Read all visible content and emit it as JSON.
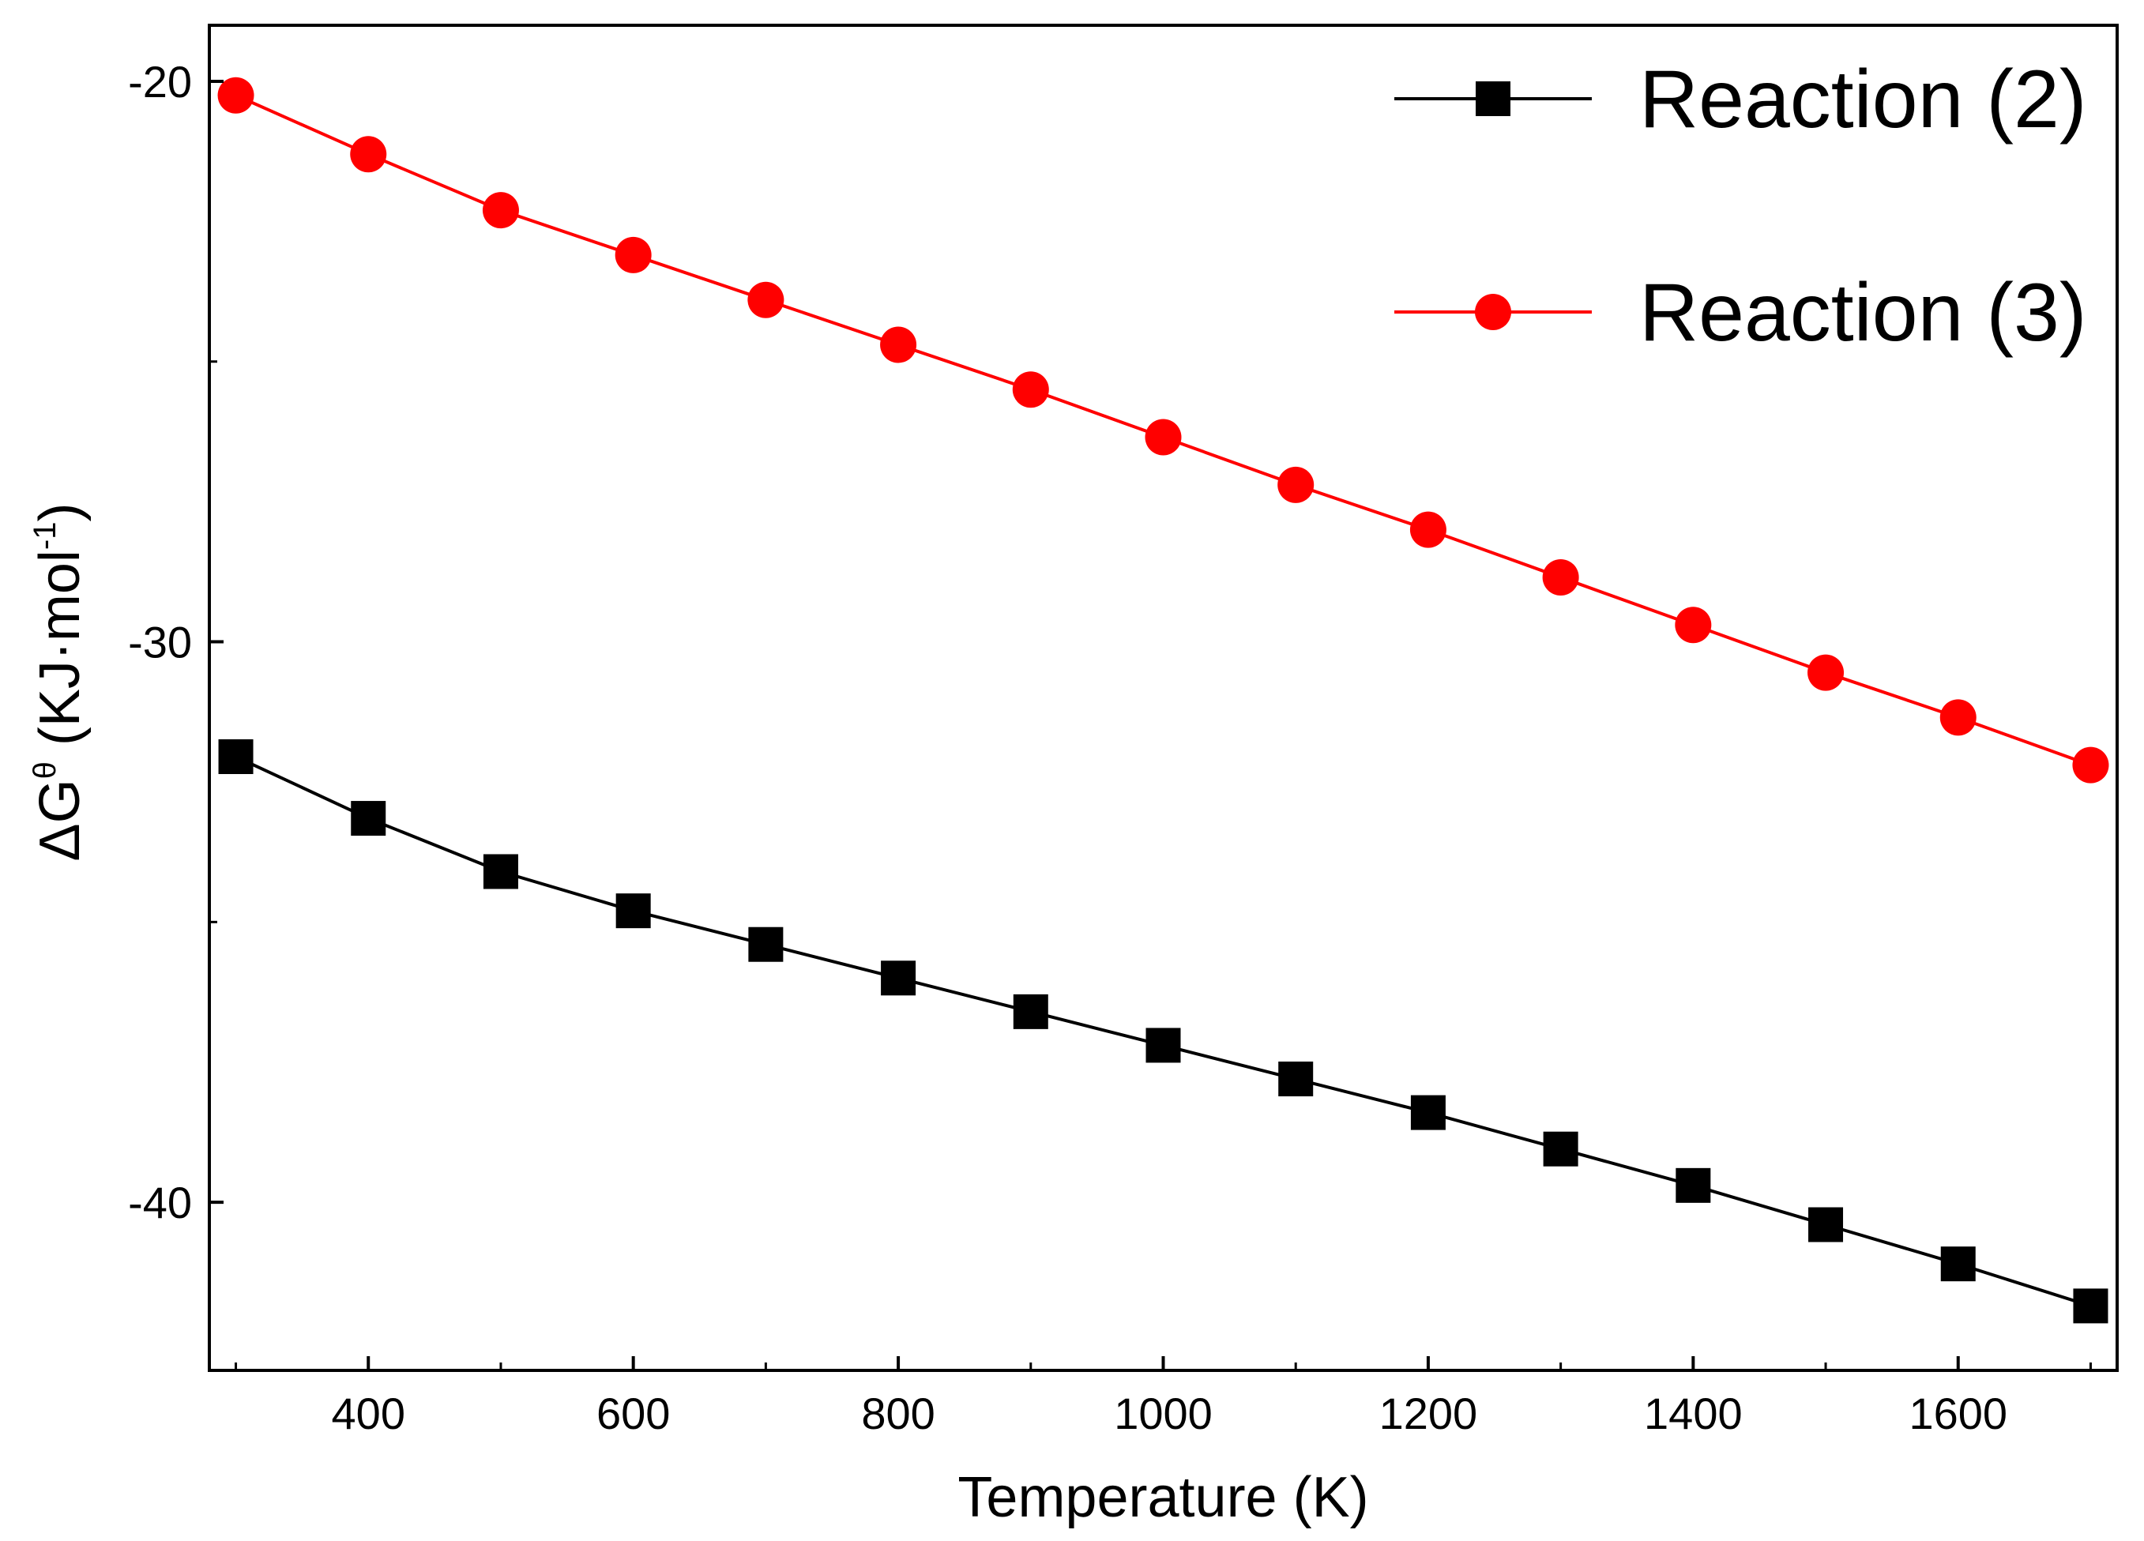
{
  "chart_data": {
    "type": "line",
    "title": "",
    "xlabel": "Temperature (K)",
    "ylabel": {
      "prefix": "ΔG",
      "superscript": "θ",
      "unit_open": " (KJ·mol",
      "unit_sup": "-1",
      "unit_close": ")"
    },
    "xlim": [
      280,
      1720
    ],
    "ylim": [
      -43,
      -19
    ],
    "xticks": [
      400,
      600,
      800,
      1000,
      1200,
      1400,
      1600
    ],
    "xtick_labels": [
      "400",
      "600",
      "800",
      "1000",
      "1200",
      "1400",
      "1600"
    ],
    "yticks": [
      -20,
      -30,
      -40
    ],
    "ytick_labels": [
      "-20",
      "-30",
      "-40"
    ],
    "grid": false,
    "legend_position": "top-right",
    "x": [
      300,
      400,
      500,
      600,
      700,
      800,
      900,
      1000,
      1100,
      1200,
      1300,
      1400,
      1500,
      1600,
      1700
    ],
    "series": [
      {
        "name": "Reaction (2)",
        "color": "#000000",
        "marker": "square",
        "values": [
          -32.05,
          -33.15,
          -34.1,
          -34.8,
          -35.4,
          -36.0,
          -36.6,
          -37.2,
          -37.8,
          -38.4,
          -39.05,
          -39.7,
          -40.4,
          -41.1,
          -41.85
        ]
      },
      {
        "name": "Reaction (3)",
        "color": "#ff0000",
        "marker": "circle",
        "values": [
          -20.25,
          -21.3,
          -22.3,
          -23.1,
          -23.9,
          -24.7,
          -25.5,
          -26.35,
          -27.2,
          -28.0,
          -28.85,
          -29.7,
          -30.55,
          -31.35,
          -32.2
        ]
      }
    ]
  }
}
